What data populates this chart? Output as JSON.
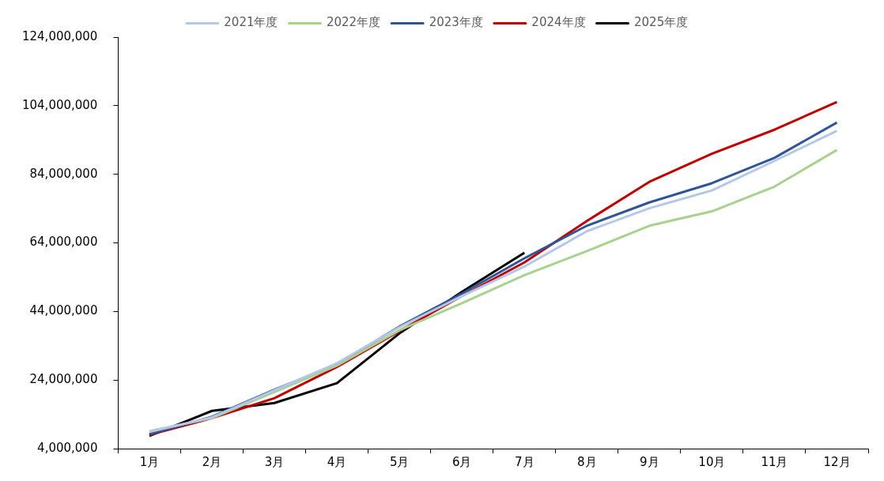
{
  "chart_data": {
    "type": "line",
    "categories": [
      "1月",
      "2月",
      "3月",
      "4月",
      "5月",
      "6月",
      "7月",
      "8月",
      "9月",
      "10月",
      "11月",
      "12月"
    ],
    "series": [
      {
        "name": "2021年度",
        "color": "#b4c7e7",
        "values": [
          8900000,
          13100000,
          21000000,
          28900000,
          39400000,
          48500000,
          57100000,
          67400000,
          74100000,
          79300000,
          87900000,
          96700000
        ]
      },
      {
        "name": "2022年度",
        "color": "#a9d18e",
        "values": [
          9100000,
          12900000,
          20500000,
          28200000,
          38500000,
          46400000,
          54600000,
          61600000,
          69000000,
          73200000,
          80400000,
          91100000
        ]
      },
      {
        "name": "2023年度",
        "color": "#2f5597",
        "values": [
          8200000,
          13300000,
          21200000,
          28500000,
          39600000,
          49200000,
          59500000,
          69000000,
          75800000,
          81400000,
          88800000,
          99100000
        ]
      },
      {
        "name": "2024年度",
        "color": "#c00000",
        "values": [
          8000000,
          12900000,
          18700000,
          27800000,
          38300000,
          48500000,
          58300000,
          70400000,
          81800000,
          90000000,
          97000000,
          105100000
        ]
      },
      {
        "name": "2025年度",
        "color": "#000000",
        "values": [
          7700000,
          15000000,
          17300000,
          23100000,
          37600000,
          49700000,
          61100000,
          null,
          null,
          null,
          null,
          null
        ]
      }
    ],
    "ylim": [
      4000000,
      124000000
    ],
    "yticks": [
      {
        "value": 4000000,
        "label": "4,000,000"
      },
      {
        "value": 24000000,
        "label": "24,000,000"
      },
      {
        "value": 44000000,
        "label": "44,000,000"
      },
      {
        "value": 64000000,
        "label": "64,000,000"
      },
      {
        "value": 84000000,
        "label": "84,000,000"
      },
      {
        "value": 104000000,
        "label": "104,000,000"
      },
      {
        "value": 124000000,
        "label": "124,000,000"
      }
    ],
    "grid": false,
    "legend": "top",
    "marker": "none",
    "line_style": "solid"
  }
}
